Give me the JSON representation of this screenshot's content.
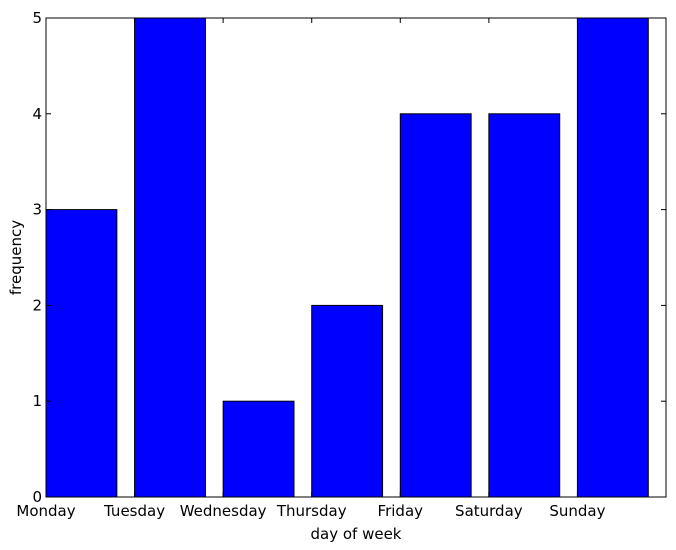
{
  "chart_data": {
    "type": "bar",
    "categories": [
      "Monday",
      "Tuesday",
      "Wednesday",
      "Thursday",
      "Friday",
      "Saturday",
      "Sunday"
    ],
    "values": [
      3,
      5,
      1,
      2,
      4,
      4,
      5
    ],
    "title": "",
    "xlabel": "day of week",
    "ylabel": "frequency",
    "ylim": [
      0,
      5
    ],
    "yticks": [
      0,
      1,
      2,
      3,
      4,
      5
    ],
    "bar_color": "#0000ff",
    "grid": false
  }
}
